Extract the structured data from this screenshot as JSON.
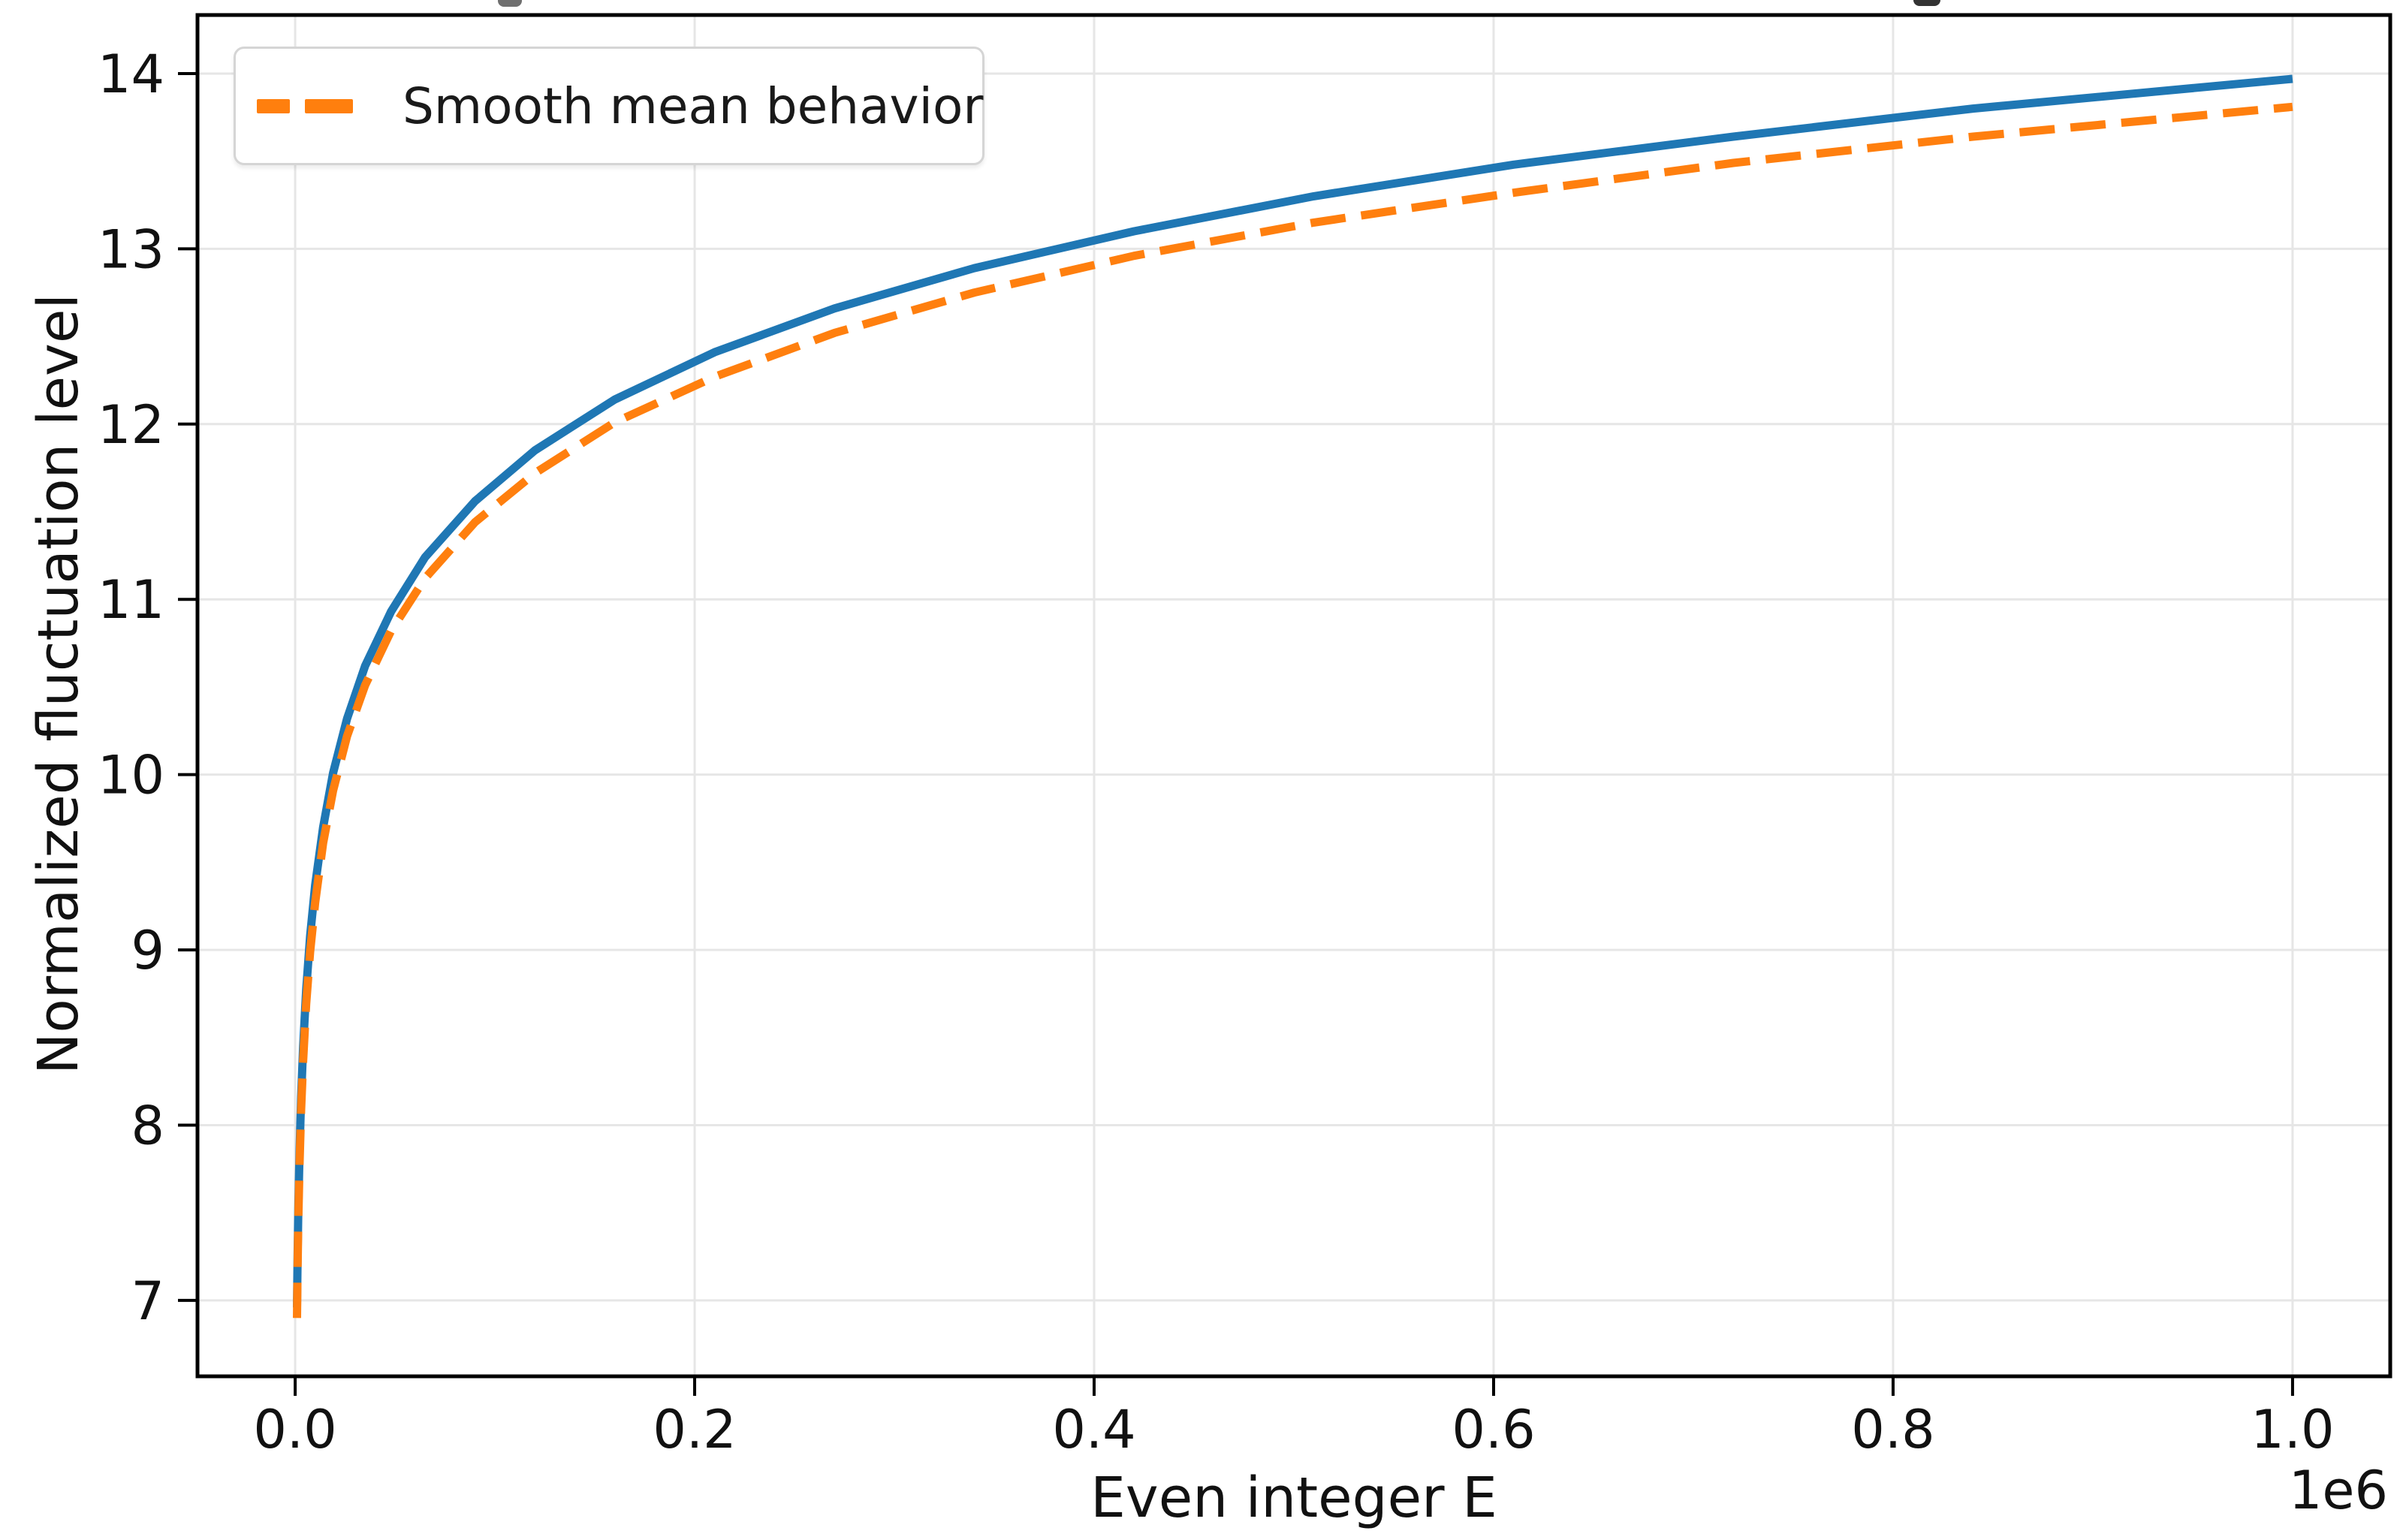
{
  "chart_data": {
    "type": "line",
    "xlabel": "Even integer E",
    "ylabel": "Normalized fluctuation level",
    "x_offset_label": "1e6",
    "xlim": [
      -48900,
      1048900
    ],
    "ylim": [
      6.567,
      14.334
    ],
    "grid": true,
    "grid_color": "#e6e6e6",
    "spine_color": "#000000",
    "xticks": [
      {
        "value": 0,
        "label": "0.0"
      },
      {
        "value": 200000,
        "label": "0.2"
      },
      {
        "value": 400000,
        "label": "0.4"
      },
      {
        "value": 600000,
        "label": "0.6"
      },
      {
        "value": 800000,
        "label": "0.8"
      },
      {
        "value": 1000000,
        "label": "1.0"
      }
    ],
    "yticks": [
      {
        "value": 7,
        "label": "7"
      },
      {
        "value": 8,
        "label": "8"
      },
      {
        "value": 9,
        "label": "9"
      },
      {
        "value": 10,
        "label": "10"
      },
      {
        "value": 11,
        "label": "11"
      },
      {
        "value": 12,
        "label": "12"
      },
      {
        "value": 13,
        "label": "13"
      },
      {
        "value": 14,
        "label": "14"
      }
    ],
    "legend": {
      "position": "upper left",
      "entries": [
        {
          "label": "Smooth mean behavior",
          "color": "#ff7f0e",
          "style": "dashed"
        }
      ]
    },
    "series": [
      {
        "name": "series-1-fluctuation-level",
        "color": "#1f77b4",
        "style": "solid",
        "x": [
          900,
          1200,
          1600,
          2200,
          3000,
          4000,
          5500,
          7500,
          10000,
          14000,
          19000,
          26000,
          35000,
          48000,
          65000,
          90000,
          120000,
          160000,
          210000,
          270000,
          340000,
          420000,
          510000,
          610000,
          720000,
          840000,
          1000000
        ],
        "y": [
          6.96,
          7.25,
          7.53,
          7.85,
          8.16,
          8.45,
          8.77,
          9.08,
          9.37,
          9.7,
          10.01,
          10.32,
          10.62,
          10.93,
          11.24,
          11.56,
          11.85,
          12.14,
          12.41,
          12.66,
          12.89,
          13.1,
          13.3,
          13.48,
          13.64,
          13.8,
          13.97
        ]
      },
      {
        "name": "series-2-smooth-mean-behavior",
        "color": "#ff7f0e",
        "style": "dashed",
        "x": [
          900,
          1200,
          1600,
          2200,
          3000,
          4000,
          5500,
          7500,
          10000,
          14000,
          19000,
          26000,
          35000,
          48000,
          65000,
          90000,
          120000,
          160000,
          210000,
          270000,
          340000,
          420000,
          510000,
          610000,
          720000,
          840000,
          1000000
        ],
        "y": [
          6.9,
          7.19,
          7.47,
          7.78,
          8.09,
          8.37,
          8.69,
          8.99,
          9.27,
          9.61,
          9.91,
          10.22,
          10.51,
          10.82,
          11.12,
          11.44,
          11.72,
          12.01,
          12.27,
          12.52,
          12.75,
          12.96,
          13.15,
          13.32,
          13.49,
          13.64,
          13.81
        ]
      }
    ]
  }
}
